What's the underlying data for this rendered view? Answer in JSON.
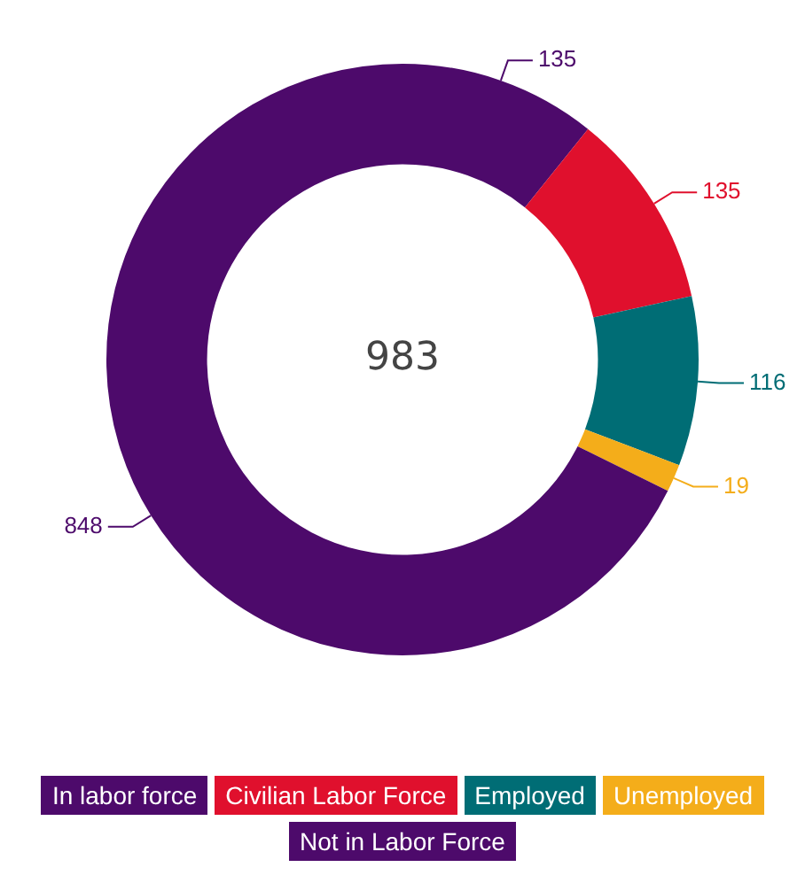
{
  "chart_data": {
    "type": "donut",
    "categories": [
      "In labor force",
      "Civilian Labor Force",
      "Employed",
      "Unemployed",
      "Not in Labor Force"
    ],
    "values": [
      135,
      135,
      116,
      19,
      848
    ],
    "colors": [
      "#4d0a6b",
      "#e0102d",
      "#006d75",
      "#f4ad1a",
      "#4d0a6b"
    ],
    "data_labels": true,
    "legend": "bottom",
    "annotations": [
      "983"
    ]
  }
}
